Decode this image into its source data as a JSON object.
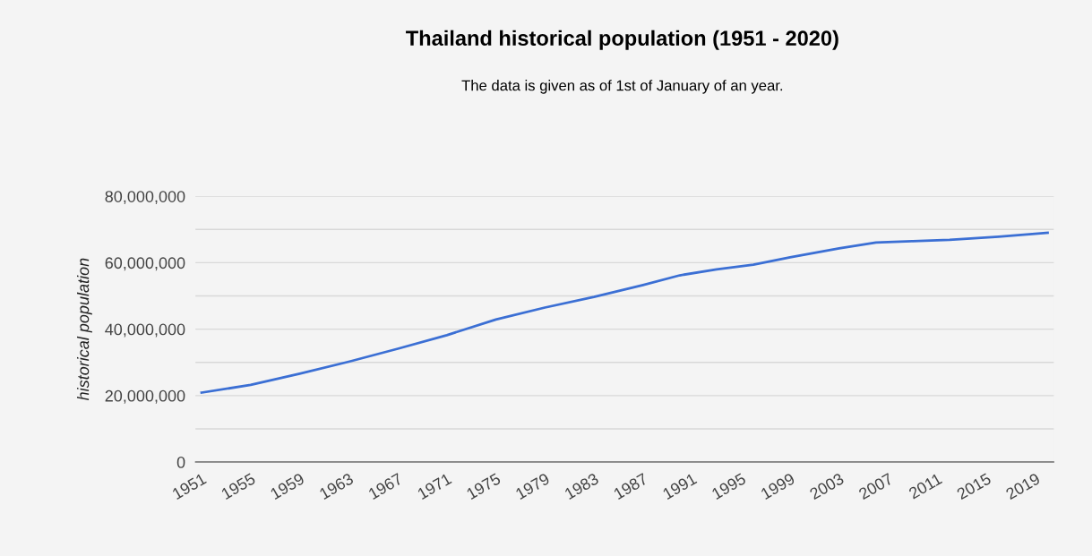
{
  "chart_data": {
    "type": "line",
    "title": "Thailand historical population (1951 - 2020)",
    "subtitle": "The data is given as of 1st of January of an year.",
    "ylabel": "historical population",
    "x": [
      1951,
      1955,
      1959,
      1963,
      1967,
      1971,
      1975,
      1979,
      1983,
      1987,
      1990,
      1993,
      1996,
      1999,
      2003,
      2006,
      2009,
      2012,
      2016,
      2020
    ],
    "series": [
      {
        "color": "#3b6fd4",
        "values": [
          20900000,
          23200000,
          26600000,
          30200000,
          34100000,
          38200000,
          42900000,
          46500000,
          49700000,
          53300000,
          56200000,
          58000000,
          59400000,
          61600000,
          64300000,
          66100000,
          66500000,
          66900000,
          67800000,
          69000000
        ]
      }
    ],
    "xlim": [
      1950.5,
      2020.5
    ],
    "xticks": [
      1951,
      1955,
      1959,
      1963,
      1967,
      1971,
      1975,
      1979,
      1983,
      1987,
      1991,
      1995,
      1999,
      2003,
      2007,
      2011,
      2015,
      2019
    ],
    "ylim": [
      0,
      80000000
    ],
    "yticks": [
      {
        "value": 0,
        "label": "0"
      },
      {
        "value": 10000000,
        "label": null
      },
      {
        "value": 20000000,
        "label": "20,000,000"
      },
      {
        "value": 30000000,
        "label": null
      },
      {
        "value": 40000000,
        "label": "40,000,000"
      },
      {
        "value": 50000000,
        "label": null
      },
      {
        "value": 60000000,
        "label": "60,000,000"
      },
      {
        "value": 70000000,
        "label": null
      },
      {
        "value": 80000000,
        "label": "80,000,000"
      }
    ],
    "grid": "y",
    "legend": false,
    "marker": "none",
    "line_style": "solid"
  }
}
